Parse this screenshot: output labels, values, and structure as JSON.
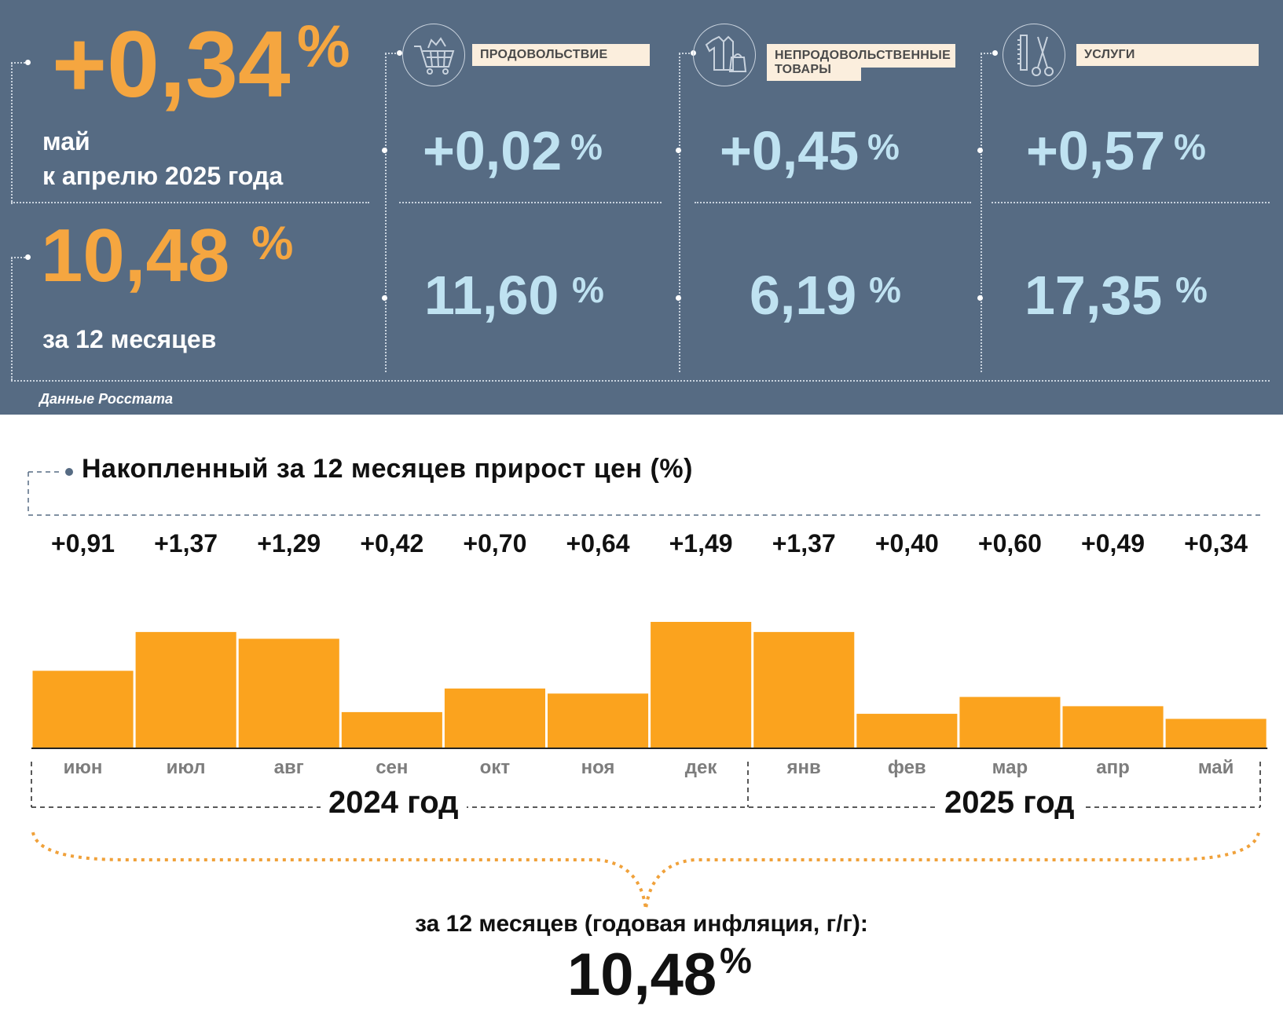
{
  "header": {
    "monthly_value": "+0,34",
    "monthly_pct": "%",
    "monthly_caption_1": "май",
    "monthly_caption_2": "к апрелю 2025 года",
    "annual_value": "10,48",
    "annual_pct": "%",
    "annual_caption": "за 12 месяцев",
    "source": "Данные Росстата"
  },
  "categories": [
    {
      "label": "ПРОДОВОЛЬСТВИЕ",
      "icon": "shopping-cart-icon",
      "monthly": "+0,02",
      "annual": "11,60",
      "pct": "%"
    },
    {
      "label_1": "НЕПРОДОВОЛЬСТВЕННЫЕ",
      "label_2": "ТОВАРЫ",
      "icon": "clothing-icon",
      "monthly": "+0,45",
      "annual": "6,19",
      "pct": "%"
    },
    {
      "label": "УСЛУГИ",
      "icon": "scissors-comb-icon",
      "monthly": "+0,57",
      "annual": "17,35",
      "pct": "%"
    }
  ],
  "colors": {
    "panel": "#566b83",
    "orange": "#f5a640",
    "light_blue": "#bfe2f1",
    "bar": "#fba31e"
  },
  "chart_data": {
    "type": "bar",
    "title": "Накопленный за 12 месяцев прирост цен (%)",
    "categories": [
      "июн",
      "июл",
      "авг",
      "сен",
      "окт",
      "ноя",
      "дек",
      "янв",
      "фев",
      "мар",
      "апр",
      "май"
    ],
    "values": [
      0.91,
      1.37,
      1.29,
      0.42,
      0.7,
      0.64,
      1.49,
      1.37,
      0.4,
      0.6,
      0.49,
      0.34
    ],
    "value_labels": [
      "+0,91",
      "+1,37",
      "+1,29",
      "+0,42",
      "+0,70",
      "+0,64",
      "+1,49",
      "+1,37",
      "+0,40",
      "+0,60",
      "+0,49",
      "+0,34"
    ],
    "year_groups": [
      "2024 год",
      "2025 год"
    ],
    "ylim": [
      0,
      1.49
    ],
    "grid": false,
    "annual_label": "за 12 месяцев (годовая инфляция, г/г):",
    "annual_value": "10,48",
    "annual_pct": "%"
  }
}
